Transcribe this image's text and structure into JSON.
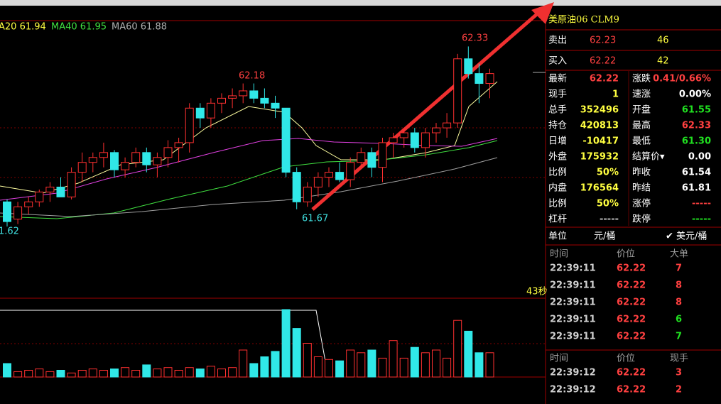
{
  "chart": {
    "ma_legend": [
      "A20 61.94",
      "MA40 61.95",
      "MA60 61.88"
    ],
    "labels": {
      "high": "62.33",
      "peak": "62.18",
      "low": "61.67",
      "left": "1.62",
      "timer": "43秒"
    },
    "kline": {
      "ylim": [
        61.58,
        62.36
      ],
      "candles": [
        [
          61.7,
          61.71,
          61.6,
          61.62
        ],
        [
          61.63,
          61.7,
          61.61,
          61.68
        ],
        [
          61.68,
          61.72,
          61.65,
          61.7
        ],
        [
          61.7,
          61.75,
          61.68,
          61.74
        ],
        [
          61.74,
          61.78,
          61.7,
          61.76
        ],
        [
          61.76,
          61.8,
          61.72,
          61.72
        ],
        [
          61.72,
          61.84,
          61.71,
          61.82
        ],
        [
          61.82,
          61.9,
          61.78,
          61.86
        ],
        [
          61.86,
          61.9,
          61.82,
          61.88
        ],
        [
          61.88,
          61.94,
          61.84,
          61.9
        ],
        [
          61.9,
          61.91,
          61.8,
          61.83
        ],
        [
          61.83,
          61.88,
          61.8,
          61.86
        ],
        [
          61.86,
          61.92,
          61.84,
          61.9
        ],
        [
          61.9,
          61.92,
          61.82,
          61.85
        ],
        [
          61.85,
          61.9,
          61.8,
          61.88
        ],
        [
          61.88,
          61.95,
          61.84,
          61.92
        ],
        [
          61.92,
          61.96,
          61.86,
          61.94
        ],
        [
          61.94,
          62.1,
          61.9,
          62.08
        ],
        [
          62.08,
          62.1,
          62.0,
          62.04
        ],
        [
          62.04,
          62.12,
          62.0,
          62.1
        ],
        [
          62.1,
          62.14,
          62.06,
          62.12
        ],
        [
          62.12,
          62.16,
          62.08,
          62.13
        ],
        [
          62.13,
          62.18,
          62.1,
          62.15
        ],
        [
          62.15,
          62.18,
          62.1,
          62.12
        ],
        [
          62.12,
          62.16,
          62.08,
          62.1
        ],
        [
          62.1,
          62.13,
          62.04,
          62.08
        ],
        [
          62.08,
          62.08,
          61.8,
          61.82
        ],
        [
          61.82,
          61.84,
          61.67,
          61.7
        ],
        [
          61.7,
          61.78,
          61.68,
          61.76
        ],
        [
          61.76,
          61.82,
          61.72,
          61.8
        ],
        [
          61.8,
          61.84,
          61.76,
          61.82
        ],
        [
          61.82,
          61.86,
          61.78,
          61.79
        ],
        [
          61.79,
          61.88,
          61.76,
          61.86
        ],
        [
          61.86,
          61.92,
          61.84,
          61.9
        ],
        [
          61.9,
          61.92,
          61.8,
          61.84
        ],
        [
          61.84,
          61.96,
          61.78,
          61.94
        ],
        [
          61.94,
          61.98,
          61.88,
          61.96
        ],
        [
          61.96,
          62.0,
          61.92,
          61.98
        ],
        [
          61.98,
          62.0,
          61.9,
          61.92
        ],
        [
          61.92,
          62.0,
          61.88,
          61.98
        ],
        [
          61.98,
          62.02,
          61.94,
          62.0
        ],
        [
          62.0,
          62.06,
          61.96,
          62.02
        ],
        [
          62.02,
          62.3,
          62.0,
          62.28
        ],
        [
          62.28,
          62.33,
          62.2,
          62.22
        ],
        [
          62.22,
          62.26,
          62.1,
          62.18
        ],
        [
          62.18,
          62.24,
          62.12,
          62.22
        ]
      ],
      "vlim": [
        0,
        100
      ],
      "volumes": [
        20,
        8,
        10,
        12,
        8,
        10,
        6,
        10,
        12,
        10,
        12,
        14,
        10,
        18,
        12,
        14,
        10,
        14,
        12,
        16,
        12,
        14,
        40,
        20,
        30,
        38,
        100,
        72,
        50,
        30,
        26,
        24,
        40,
        36,
        40,
        28,
        54,
        28,
        44,
        36,
        40,
        28,
        84,
        68,
        36,
        36
      ]
    }
  },
  "quote": {
    "title": "美原油06  CLM9",
    "sell": {
      "label": "卖出",
      "price": "62.23",
      "qty": "46"
    },
    "buy": {
      "label": "买入",
      "price": "62.22",
      "qty": "42"
    },
    "stats": [
      [
        {
          "label": "最新",
          "value": "62.22",
          "color": "#ff4040"
        },
        {
          "label": "涨跌",
          "value": "0.41/0.66%",
          "color": "#ff4040"
        }
      ],
      [
        {
          "label": "现手",
          "value": "1",
          "color": "#ffff40"
        },
        {
          "label": "速涨",
          "value": "0.00%",
          "color": "#ffffff"
        }
      ],
      [
        {
          "label": "总手",
          "value": "352496",
          "color": "#ffff40"
        },
        {
          "label": "开盘",
          "value": "61.55",
          "color": "#20e020"
        }
      ],
      [
        {
          "label": "持仓",
          "value": "420813",
          "color": "#ffff40"
        },
        {
          "label": "最高",
          "value": "62.33",
          "color": "#ff4040"
        }
      ],
      [
        {
          "label": "日增",
          "value": "-10417",
          "color": "#ffff40"
        },
        {
          "label": "最低",
          "value": "61.30",
          "color": "#20e020"
        }
      ],
      [
        {
          "label": "外盘",
          "value": "175932",
          "color": "#ffff40"
        },
        {
          "label": "结算价▾",
          "value": "0.00",
          "color": "#ffffff"
        }
      ],
      [
        {
          "label": "比例",
          "value": "50%",
          "color": "#ffff40"
        },
        {
          "label": "昨收",
          "value": "61.54",
          "color": "#ffffff"
        }
      ],
      [
        {
          "label": "内盘",
          "value": "176564",
          "color": "#ffff40"
        },
        {
          "label": "昨结",
          "value": "61.81",
          "color": "#ffffff"
        }
      ],
      [
        {
          "label": "比例",
          "value": "50%",
          "color": "#ffff40"
        },
        {
          "label": "涨停",
          "value": "-----",
          "color": "#ff4040"
        }
      ],
      [
        {
          "label": "杠杆",
          "value": "-----",
          "color": "#c0c0c0"
        },
        {
          "label": "跌停",
          "value": "-----",
          "color": "#20e020"
        }
      ]
    ],
    "unit": {
      "label": "单位",
      "left": "元/桶",
      "right": "✔ 美元/桶"
    },
    "trades1": {
      "header": [
        "时间",
        "价位",
        "大单"
      ],
      "rows": [
        [
          "22:39:11",
          "62.22",
          "7"
        ],
        [
          "22:39:11",
          "62.22",
          "8"
        ],
        [
          "22:39:11",
          "62.22",
          "8"
        ],
        [
          "22:39:11",
          "62.22",
          "6"
        ],
        [
          "22:39:11",
          "62.22",
          "7"
        ]
      ],
      "qty_colors": [
        "#ff4040",
        "#ff4040",
        "#ff4040",
        "#20e020",
        "#20e020"
      ]
    },
    "trades2": {
      "header": [
        "时间",
        "价位",
        "现手"
      ],
      "rows": [
        [
          "22:39:12",
          "62.22",
          "3"
        ],
        [
          "22:39:12",
          "62.22",
          "2"
        ]
      ],
      "qty_colors": [
        "#ff4040",
        "#ff4040"
      ]
    }
  }
}
